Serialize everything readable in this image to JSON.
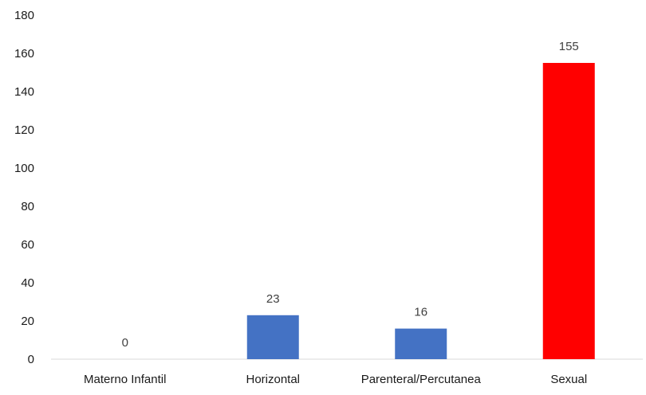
{
  "chart_data": {
    "type": "bar",
    "title": "",
    "xlabel": "",
    "ylabel": "",
    "categories": [
      "Materno Infantil",
      "Horizontal",
      "Parenteral/Percutanea",
      "Sexual"
    ],
    "values": [
      0,
      23,
      16,
      155
    ],
    "data_labels": [
      "0",
      "23",
      "16",
      "155"
    ],
    "bar_colors": [
      "#4472C4",
      "#4472C4",
      "#4472C4",
      "#FF0000"
    ],
    "ylim": [
      0,
      180
    ],
    "y_ticks": [
      0,
      20,
      40,
      60,
      80,
      100,
      120,
      140,
      160,
      180
    ],
    "y_tick_labels": [
      "0",
      "20",
      "40",
      "60",
      "80",
      "100",
      "120",
      "140",
      "160",
      "180"
    ],
    "grid": false,
    "legend": "none"
  }
}
